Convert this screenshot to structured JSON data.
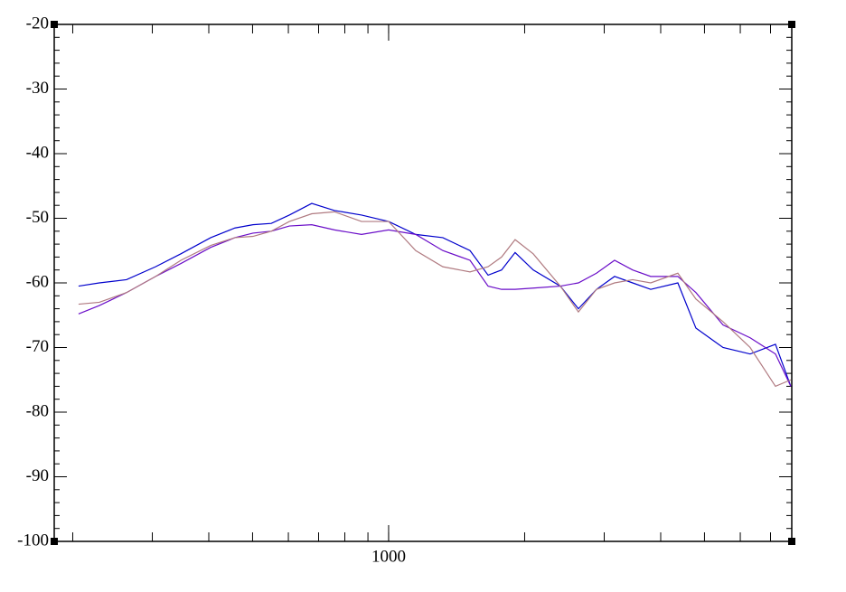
{
  "chart_data": {
    "type": "line",
    "x": [
      206,
      229,
      263,
      305,
      347,
      404,
      457,
      501,
      550,
      603,
      676,
      759,
      871,
      1000,
      1148,
      1318,
      1514,
      1660,
      1778,
      1905,
      2089,
      2399,
      2630,
      2884,
      3162,
      3467,
      3802,
      4365,
      4786,
      5495,
      6310,
      7178,
      7762
    ],
    "series": [
      {
        "color": "#0000cc",
        "values": [
          -60.5,
          -60,
          -59.5,
          -57.5,
          -55.5,
          -53,
          -51.5,
          -51,
          -50.8,
          -49.5,
          -47.7,
          -48.8,
          -49.5,
          -50.5,
          -52.5,
          -53,
          -55,
          -58.8,
          -58,
          -55.3,
          -58,
          -60.5,
          -64,
          -61,
          -59,
          -60,
          -61,
          -60,
          -67,
          -70,
          -71,
          -69.5,
          -76
        ]
      },
      {
        "color": "#6a0dc8",
        "values": [
          -64.8,
          -63.5,
          -61.5,
          -59,
          -57,
          -54.5,
          -53,
          -52.3,
          -52,
          -51.2,
          -51,
          -51.8,
          -52.5,
          -51.8,
          -52.5,
          -55,
          -56.5,
          -60.5,
          -61,
          -61,
          -60.8,
          -60.5,
          -60,
          -58.5,
          -56.5,
          -58,
          -59,
          -59,
          -61.5,
          -66.5,
          -68.5,
          -71,
          -76
        ]
      },
      {
        "color": "#b07a80",
        "values": [
          -63.3,
          -63,
          -61.5,
          -59,
          -56.5,
          -54.2,
          -53,
          -52.8,
          -52,
          -50.5,
          -49.3,
          -49,
          -50.5,
          -50.5,
          -55,
          -57.5,
          -58.3,
          -57.5,
          -56,
          -53.3,
          -55.5,
          -60.5,
          -64.5,
          -61,
          -60,
          -59.5,
          -60,
          -58.5,
          -62.5,
          -66,
          -70,
          -76,
          -75
        ]
      }
    ],
    "xscale": "log",
    "xlim": [
      182,
      7800
    ],
    "xticks": [
      1000
    ],
    "ylim": [
      -100,
      -20
    ],
    "yticks": [
      -100,
      -90,
      -80,
      -70,
      -60,
      -50,
      -40,
      -30,
      -20
    ]
  }
}
